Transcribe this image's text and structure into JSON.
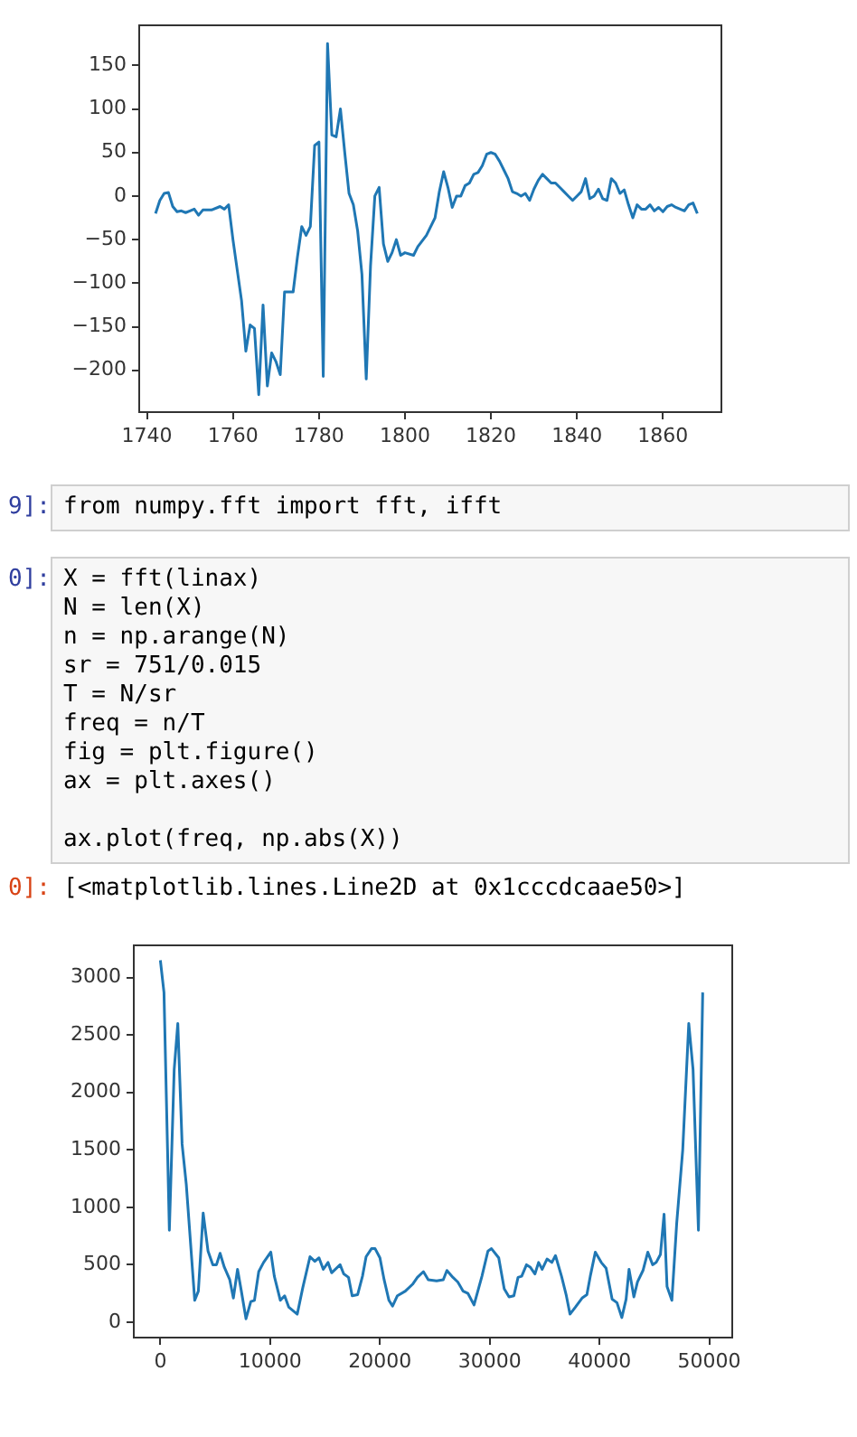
{
  "chart_data": [
    {
      "type": "line",
      "color": "#1f77b4",
      "xlim": [
        1738.2,
        1873.6
      ],
      "ylim": [
        -248,
        196
      ],
      "xticks": [
        1740,
        1760,
        1780,
        1800,
        1820,
        1840,
        1860
      ],
      "yticks": [
        {
          "value": -200,
          "label": "−200"
        },
        {
          "value": -150,
          "label": "−150"
        },
        {
          "value": -100,
          "label": "−100"
        },
        {
          "value": -50,
          "label": "−50"
        },
        0,
        50,
        100,
        150
      ],
      "x": [
        1742,
        1743,
        1744,
        1745,
        1746,
        1747,
        1748,
        1749,
        1750,
        1751,
        1752,
        1753,
        1755,
        1757,
        1758,
        1759,
        1760,
        1762,
        1763,
        1764,
        1765,
        1766,
        1767,
        1768,
        1769,
        1770,
        1771,
        1772,
        1774,
        1775,
        1776,
        1777,
        1778,
        1779,
        1780,
        1781,
        1782,
        1783,
        1784,
        1785,
        1786,
        1787,
        1788,
        1789,
        1790,
        1791,
        1792,
        1793,
        1794,
        1795,
        1796,
        1797,
        1798,
        1799,
        1800,
        1802,
        1803,
        1805,
        1807,
        1808,
        1809,
        1810,
        1811,
        1812,
        1813,
        1814,
        1815,
        1816,
        1817,
        1818,
        1819,
        1820,
        1821,
        1822,
        1823,
        1824,
        1825,
        1826,
        1827,
        1828,
        1829,
        1830,
        1831,
        1832,
        1833,
        1834,
        1835,
        1836,
        1837,
        1838,
        1839,
        1840,
        1841,
        1842,
        1843,
        1844,
        1845,
        1846,
        1847,
        1848,
        1849,
        1850,
        1851,
        1852,
        1853,
        1854,
        1855,
        1856,
        1857,
        1858,
        1859,
        1860,
        1861,
        1862,
        1863,
        1864,
        1865,
        1866,
        1867,
        1868
      ],
      "values": [
        -20,
        -5,
        3,
        4,
        -12,
        -18,
        -17,
        -19,
        -17,
        -15,
        -22,
        -16,
        -16,
        -12,
        -15,
        -10,
        -50,
        -120,
        -178,
        -148,
        -152,
        -228,
        -125,
        -218,
        -180,
        -190,
        -205,
        -110,
        -110,
        -70,
        -35,
        -45,
        -35,
        58,
        62,
        -207,
        175,
        70,
        68,
        100,
        50,
        3,
        -10,
        -40,
        -90,
        -210,
        -80,
        0,
        10,
        -55,
        -75,
        -65,
        -50,
        -68,
        -65,
        -68,
        -58,
        -45,
        -25,
        5,
        28,
        10,
        -13,
        0,
        0,
        12,
        15,
        25,
        27,
        35,
        48,
        50,
        48,
        40,
        30,
        20,
        5,
        3,
        0,
        3,
        -5,
        8,
        18,
        25,
        20,
        15,
        15,
        10,
        5,
        0,
        -5,
        0,
        5,
        20,
        -3,
        0,
        8,
        -3,
        -5,
        20,
        15,
        3,
        7,
        -10,
        -25,
        -10,
        -15,
        -15,
        -10,
        -17,
        -13,
        -18,
        -12,
        -10,
        -13,
        -15,
        -17,
        -10,
        -8,
        -20
      ]
    },
    {
      "type": "other",
      "annotations": [
        "9]:",
        "from numpy.fft import fft, ifft",
        "0]:",
        "X = fft(linax)",
        "N = len(X)",
        "n = np.arange(N)",
        "sr = 751/0.015",
        "T = N/sr",
        "freq = n/T",
        "fig = plt.figure()",
        "ax = plt.axes()",
        "ax.plot(freq, np.abs(X))",
        "0]:",
        "[<matplotlib.lines.Line2D at 0x1cccdcaae50>]"
      ]
    },
    {
      "type": "line",
      "color": "#1f77b4",
      "xlim": [
        -2420,
        52090
      ],
      "ylim": [
        -134,
        3280
      ],
      "xticks": [
        0,
        10000,
        20000,
        30000,
        40000,
        50000
      ],
      "yticks": [
        0,
        500,
        1000,
        1500,
        2000,
        2500,
        3000
      ],
      "x": [
        0,
        330,
        820,
        1260,
        1590,
        1980,
        2360,
        3130,
        3460,
        3900,
        4340,
        4780,
        5110,
        5440,
        5820,
        6320,
        6650,
        7030,
        7360,
        7800,
        8240,
        8570,
        8960,
        9400,
        10060,
        10380,
        10930,
        11320,
        11700,
        12470,
        12970,
        13630,
        14070,
        14450,
        14840,
        15270,
        15600,
        16370,
        16700,
        17140,
        17470,
        17970,
        18410,
        18740,
        19230,
        19560,
        20000,
        20380,
        20820,
        21150,
        21590,
        22310,
        22970,
        23410,
        23960,
        24400,
        25160,
        25770,
        26100,
        26650,
        27090,
        27580,
        28020,
        28570,
        29290,
        29840,
        30160,
        30820,
        31320,
        31760,
        32200,
        32580,
        32910,
        33350,
        33680,
        34120,
        34450,
        34780,
        35220,
        35660,
        35990,
        36540,
        36980,
        37310,
        37800,
        38410,
        38850,
        39180,
        39620,
        40160,
        40600,
        41150,
        41590,
        42030,
        42420,
        42690,
        43130,
        43460,
        43960,
        44400,
        44840,
        45160,
        45550,
        45880,
        46150,
        46590,
        47030,
        47580,
        48130,
        48520,
        49010,
        49400
      ],
      "values": [
        3150,
        2870,
        800,
        2200,
        2600,
        1550,
        1200,
        190,
        270,
        950,
        620,
        500,
        500,
        600,
        480,
        370,
        210,
        460,
        280,
        30,
        180,
        190,
        440,
        520,
        610,
        400,
        190,
        230,
        130,
        70,
        300,
        570,
        530,
        560,
        460,
        520,
        430,
        500,
        420,
        390,
        230,
        240,
        400,
        570,
        640,
        640,
        560,
        370,
        190,
        140,
        230,
        270,
        330,
        390,
        440,
        370,
        360,
        370,
        450,
        390,
        350,
        270,
        250,
        150,
        400,
        620,
        640,
        560,
        290,
        220,
        230,
        390,
        400,
        500,
        480,
        420,
        520,
        460,
        550,
        520,
        580,
        400,
        230,
        70,
        130,
        210,
        240,
        410,
        610,
        520,
        470,
        200,
        170,
        40,
        200,
        460,
        220,
        350,
        450,
        610,
        500,
        520,
        590,
        940,
        310,
        190,
        860,
        1500,
        2600,
        2200,
        800,
        2870
      ]
    }
  ]
}
